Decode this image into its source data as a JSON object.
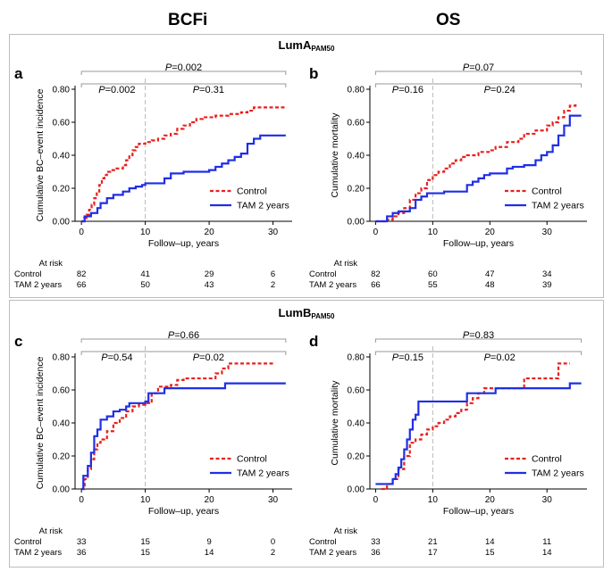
{
  "column_titles": [
    "BCFi",
    "OS"
  ],
  "sections": [
    {
      "title_main": "LumA",
      "title_sub": "PAM50"
    },
    {
      "title_main": "LumB",
      "title_sub": "PAM50"
    }
  ],
  "chart_data": [
    {
      "type": "line",
      "panel_letter": "a",
      "ylabel": "Cumulative BC–event incidence",
      "xlabel": "Follow–up, years",
      "xlim": [
        -1,
        33
      ],
      "ylim": [
        0,
        0.8
      ],
      "xticks": [
        0,
        10,
        20,
        30
      ],
      "yticks": [
        0,
        0.2,
        0.4,
        0.6,
        0.8
      ],
      "ytick_labels": [
        "0.00",
        "0.20",
        "0.40",
        "0.60",
        "0.80"
      ],
      "p_overall": "=0.002",
      "p_early": "=0.002",
      "p_late": "=0.31",
      "p_letter": "P",
      "legend_position": "bottom-right",
      "series": [
        {
          "name": "Control",
          "color": "#e8211e",
          "style": "dashed",
          "points": [
            [
              0,
              0
            ],
            [
              0.4,
              0.02
            ],
            [
              0.8,
              0.04
            ],
            [
              1.2,
              0.07
            ],
            [
              1.6,
              0.1
            ],
            [
              2,
              0.14
            ],
            [
              2.4,
              0.18
            ],
            [
              2.8,
              0.22
            ],
            [
              3.2,
              0.26
            ],
            [
              3.6,
              0.28
            ],
            [
              4,
              0.3
            ],
            [
              4.5,
              0.31
            ],
            [
              5.5,
              0.32
            ],
            [
              6.5,
              0.34
            ],
            [
              7,
              0.37
            ],
            [
              7.5,
              0.4
            ],
            [
              8,
              0.43
            ],
            [
              8.5,
              0.45
            ],
            [
              9,
              0.47
            ],
            [
              10,
              0.48
            ],
            [
              11,
              0.49
            ],
            [
              12,
              0.5
            ],
            [
              13,
              0.52
            ],
            [
              14,
              0.53
            ],
            [
              15,
              0.56
            ],
            [
              16,
              0.58
            ],
            [
              17,
              0.6
            ],
            [
              18,
              0.62
            ],
            [
              19,
              0.63
            ],
            [
              21,
              0.64
            ],
            [
              23,
              0.65
            ],
            [
              25,
              0.66
            ],
            [
              26,
              0.67
            ],
            [
              27,
              0.69
            ],
            [
              32,
              0.69
            ]
          ]
        },
        {
          "name": "TAM 2 years",
          "color": "#1f2ee6",
          "style": "solid",
          "points": [
            [
              0,
              0
            ],
            [
              0.5,
              0.03
            ],
            [
              1.5,
              0.05
            ],
            [
              2.5,
              0.08
            ],
            [
              3,
              0.11
            ],
            [
              4,
              0.14
            ],
            [
              5,
              0.16
            ],
            [
              6.5,
              0.18
            ],
            [
              7.5,
              0.2
            ],
            [
              8.5,
              0.21
            ],
            [
              9.5,
              0.22
            ],
            [
              10,
              0.23
            ],
            [
              12,
              0.23
            ],
            [
              13,
              0.26
            ],
            [
              14,
              0.29
            ],
            [
              16,
              0.3
            ],
            [
              20,
              0.31
            ],
            [
              21,
              0.33
            ],
            [
              22,
              0.35
            ],
            [
              23,
              0.37
            ],
            [
              24,
              0.39
            ],
            [
              25,
              0.41
            ],
            [
              26,
              0.47
            ],
            [
              27,
              0.5
            ],
            [
              28,
              0.52
            ],
            [
              32,
              0.52
            ]
          ]
        }
      ],
      "at_risk": {
        "label": "At risk",
        "rows": [
          {
            "name": "Control",
            "values": [
              "82",
              "41",
              "29",
              "6"
            ]
          },
          {
            "name": "TAM 2 years",
            "values": [
              "66",
              "50",
              "43",
              "2"
            ]
          }
        ]
      }
    },
    {
      "type": "line",
      "panel_letter": "b",
      "ylabel": "Cumulative mortality",
      "xlabel": "Follow–up, years",
      "xlim": [
        -1,
        37
      ],
      "ylim": [
        0,
        0.8
      ],
      "xticks": [
        0,
        10,
        20,
        30
      ],
      "yticks": [
        0,
        0.2,
        0.4,
        0.6,
        0.8
      ],
      "ytick_labels": [
        "0.00",
        "0.20",
        "0.40",
        "0.60",
        "0.80"
      ],
      "p_overall": "=0.07",
      "p_early": "=0.16",
      "p_late": "=0.24",
      "p_letter": "P",
      "legend_position": "bottom-right",
      "series": [
        {
          "name": "Control",
          "color": "#e8211e",
          "style": "dashed",
          "points": [
            [
              0,
              0
            ],
            [
              2,
              0.01
            ],
            [
              3,
              0.03
            ],
            [
              4,
              0.05
            ],
            [
              5,
              0.08
            ],
            [
              6,
              0.13
            ],
            [
              7,
              0.17
            ],
            [
              8,
              0.2
            ],
            [
              9,
              0.25
            ],
            [
              10,
              0.28
            ],
            [
              11,
              0.3
            ],
            [
              12,
              0.32
            ],
            [
              13,
              0.35
            ],
            [
              14,
              0.37
            ],
            [
              15,
              0.39
            ],
            [
              16,
              0.4
            ],
            [
              18,
              0.42
            ],
            [
              20,
              0.43
            ],
            [
              21,
              0.45
            ],
            [
              23,
              0.48
            ],
            [
              25,
              0.5
            ],
            [
              26,
              0.53
            ],
            [
              28,
              0.55
            ],
            [
              30,
              0.58
            ],
            [
              31,
              0.6
            ],
            [
              32,
              0.63
            ],
            [
              33,
              0.67
            ],
            [
              34,
              0.7
            ],
            [
              35,
              0.71
            ]
          ]
        },
        {
          "name": "TAM 2 years",
          "color": "#1f2ee6",
          "style": "solid",
          "points": [
            [
              0,
              0
            ],
            [
              2,
              0.03
            ],
            [
              3,
              0.05
            ],
            [
              4,
              0.06
            ],
            [
              6,
              0.08
            ],
            [
              7,
              0.13
            ],
            [
              8,
              0.15
            ],
            [
              9,
              0.17
            ],
            [
              11,
              0.17
            ],
            [
              12,
              0.18
            ],
            [
              15,
              0.18
            ],
            [
              16,
              0.22
            ],
            [
              17,
              0.24
            ],
            [
              18,
              0.26
            ],
            [
              19,
              0.28
            ],
            [
              20,
              0.29
            ],
            [
              23,
              0.32
            ],
            [
              24,
              0.33
            ],
            [
              26,
              0.34
            ],
            [
              28,
              0.37
            ],
            [
              29,
              0.4
            ],
            [
              30,
              0.42
            ],
            [
              31,
              0.46
            ],
            [
              32,
              0.52
            ],
            [
              33,
              0.58
            ],
            [
              34,
              0.64
            ],
            [
              36,
              0.64
            ]
          ]
        }
      ],
      "at_risk": {
        "label": "At risk",
        "rows": [
          {
            "name": "Control",
            "values": [
              "82",
              "60",
              "47",
              "34"
            ]
          },
          {
            "name": "TAM 2 years",
            "values": [
              "66",
              "55",
              "48",
              "39"
            ]
          }
        ]
      }
    },
    {
      "type": "line",
      "panel_letter": "c",
      "ylabel": "Cumulative BC–event incidence",
      "xlabel": "Follow–up, years",
      "xlim": [
        -1,
        33
      ],
      "ylim": [
        0,
        0.8
      ],
      "xticks": [
        0,
        10,
        20,
        30
      ],
      "yticks": [
        0,
        0.2,
        0.4,
        0.6,
        0.8
      ],
      "ytick_labels": [
        "0.00",
        "0.20",
        "0.40",
        "0.60",
        "0.80"
      ],
      "p_overall": "=0.66",
      "p_early": "=0.54",
      "p_late": "=0.02",
      "p_letter": "P",
      "legend_position": "bottom-right",
      "series": [
        {
          "name": "Control",
          "color": "#e8211e",
          "style": "dashed",
          "points": [
            [
              0,
              0
            ],
            [
              0.5,
              0.06
            ],
            [
              1,
              0.12
            ],
            [
              1.5,
              0.18
            ],
            [
              2,
              0.24
            ],
            [
              2.5,
              0.28
            ],
            [
              3,
              0.3
            ],
            [
              4,
              0.35
            ],
            [
              5,
              0.4
            ],
            [
              6,
              0.43
            ],
            [
              7,
              0.47
            ],
            [
              8,
              0.5
            ],
            [
              9,
              0.51
            ],
            [
              10,
              0.52
            ],
            [
              11,
              0.58
            ],
            [
              12,
              0.62
            ],
            [
              14,
              0.63
            ],
            [
              15,
              0.66
            ],
            [
              16,
              0.67
            ],
            [
              20,
              0.67
            ],
            [
              21,
              0.7
            ],
            [
              22,
              0.73
            ],
            [
              23,
              0.76
            ],
            [
              30,
              0.76
            ]
          ]
        },
        {
          "name": "TAM 2 years",
          "color": "#1f2ee6",
          "style": "solid",
          "points": [
            [
              0,
              0
            ],
            [
              0.3,
              0.08
            ],
            [
              1,
              0.14
            ],
            [
              1.5,
              0.22
            ],
            [
              2,
              0.32
            ],
            [
              2.5,
              0.36
            ],
            [
              3,
              0.42
            ],
            [
              4,
              0.44
            ],
            [
              5,
              0.47
            ],
            [
              6,
              0.48
            ],
            [
              7,
              0.5
            ],
            [
              7.5,
              0.52
            ],
            [
              10,
              0.53
            ],
            [
              10.5,
              0.58
            ],
            [
              13,
              0.61
            ],
            [
              22,
              0.61
            ],
            [
              22.5,
              0.64
            ],
            [
              32,
              0.64
            ]
          ]
        }
      ],
      "at_risk": {
        "label": "At risk",
        "rows": [
          {
            "name": "Control",
            "values": [
              "33",
              "15",
              "9",
              "0"
            ]
          },
          {
            "name": "TAM 2 years",
            "values": [
              "36",
              "15",
              "14",
              "2"
            ]
          }
        ]
      }
    },
    {
      "type": "line",
      "panel_letter": "d",
      "ylabel": "Cumulative mortality",
      "xlabel": "Follow–up, years",
      "xlim": [
        -1,
        37
      ],
      "ylim": [
        0,
        0.8
      ],
      "xticks": [
        0,
        10,
        20,
        30
      ],
      "yticks": [
        0,
        0.2,
        0.4,
        0.6,
        0.8
      ],
      "ytick_labels": [
        "0.00",
        "0.20",
        "0.40",
        "0.60",
        "0.80"
      ],
      "p_overall": "=0.83",
      "p_early": "=0.15",
      "p_late": "=0.02",
      "p_letter": "P",
      "legend_position": "bottom-right",
      "series": [
        {
          "name": "Control",
          "color": "#e8211e",
          "style": "dashed",
          "points": [
            [
              1,
              0
            ],
            [
              2,
              0.03
            ],
            [
              3,
              0.06
            ],
            [
              4,
              0.12
            ],
            [
              5,
              0.2
            ],
            [
              6,
              0.28
            ],
            [
              7,
              0.3
            ],
            [
              8,
              0.33
            ],
            [
              9,
              0.36
            ],
            [
              10,
              0.38
            ],
            [
              11,
              0.4
            ],
            [
              12,
              0.42
            ],
            [
              13,
              0.44
            ],
            [
              14,
              0.46
            ],
            [
              15,
              0.48
            ],
            [
              16,
              0.52
            ],
            [
              17,
              0.55
            ],
            [
              18,
              0.58
            ],
            [
              19,
              0.61
            ],
            [
              25,
              0.61
            ],
            [
              26,
              0.67
            ],
            [
              31,
              0.67
            ],
            [
              32,
              0.76
            ],
            [
              34,
              0.76
            ]
          ]
        },
        {
          "name": "TAM 2 years",
          "color": "#1f2ee6",
          "style": "solid",
          "points": [
            [
              0,
              0.03
            ],
            [
              2,
              0.03
            ],
            [
              3,
              0.06
            ],
            [
              3.5,
              0.09
            ],
            [
              4,
              0.13
            ],
            [
              4.5,
              0.18
            ],
            [
              5,
              0.24
            ],
            [
              5.5,
              0.3
            ],
            [
              6,
              0.36
            ],
            [
              6.5,
              0.42
            ],
            [
              7,
              0.45
            ],
            [
              7.5,
              0.53
            ],
            [
              15,
              0.53
            ],
            [
              16,
              0.58
            ],
            [
              20,
              0.58
            ],
            [
              21,
              0.61
            ],
            [
              33,
              0.61
            ],
            [
              34,
              0.64
            ],
            [
              36,
              0.64
            ]
          ]
        }
      ],
      "at_risk": {
        "label": "At risk",
        "rows": [
          {
            "name": "Control",
            "values": [
              "33",
              "21",
              "14",
              "11"
            ]
          },
          {
            "name": "TAM 2 years",
            "values": [
              "36",
              "17",
              "15",
              "14"
            ]
          }
        ]
      }
    }
  ]
}
